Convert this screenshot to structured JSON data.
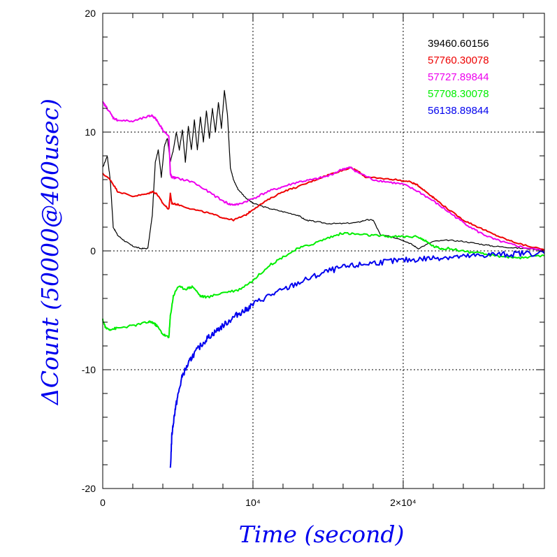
{
  "chart_data": {
    "type": "line",
    "xlabel": "Time (second)",
    "ylabel": "ΔCount (50000@400usec)",
    "xlim": [
      0,
      29400
    ],
    "ylim": [
      -20,
      20
    ],
    "grid": true,
    "legend_placement": "top-right",
    "label_color": "#0000ee",
    "x_ticks": [
      {
        "value": 0,
        "label": "0"
      },
      {
        "value": 10000,
        "label": "10⁴"
      },
      {
        "value": 20000,
        "label": "2×10⁴"
      }
    ],
    "y_ticks": [
      {
        "value": 20,
        "label": "20"
      },
      {
        "value": 10,
        "label": "10"
      },
      {
        "value": 0,
        "label": "0"
      },
      {
        "value": -10,
        "label": "-10"
      },
      {
        "value": -20,
        "label": "-20"
      }
    ],
    "series": [
      {
        "name": "39460.60156",
        "color": "#000000",
        "x": [
          0,
          300,
          500,
          700,
          1000,
          1500,
          2000,
          2500,
          3000,
          3300,
          3500,
          3700,
          3900,
          4100,
          4300,
          4500,
          4700,
          4900,
          5100,
          5300,
          5500,
          5700,
          5900,
          6100,
          6300,
          6500,
          6700,
          6900,
          7100,
          7300,
          7500,
          7700,
          7900,
          8100,
          8300,
          8500,
          8700,
          9000,
          9500,
          10000,
          11000,
          12000,
          13000,
          13500,
          14000,
          15000,
          16000,
          17000,
          17500,
          18000,
          18500,
          19000,
          20000,
          20500,
          21000,
          22000,
          23000,
          24000,
          25000,
          26000,
          27000,
          28000,
          29400
        ],
        "y": [
          7,
          8,
          6,
          2,
          1.3,
          0.8,
          0.4,
          0.2,
          0.2,
          3,
          7.5,
          8.5,
          6.2,
          8.8,
          9.5,
          7.5,
          8.5,
          10,
          8.5,
          10.2,
          7.5,
          10.5,
          8.5,
          11,
          8.5,
          11.3,
          9.2,
          11.8,
          9.5,
          12,
          10,
          12.5,
          10.3,
          13.5,
          11.5,
          7,
          6,
          5.2,
          4.5,
          4,
          3.6,
          3.3,
          3.0,
          2.6,
          2.5,
          2.3,
          2.3,
          2.4,
          2.6,
          2.6,
          1.3,
          1.3,
          0.9,
          0.6,
          0.2,
          0.8,
          0.9,
          0.8,
          0.6,
          0.4,
          0.3,
          0.2,
          0.1
        ]
      },
      {
        "name": "57760.30078",
        "color": "#ee0000",
        "x": [
          0,
          500,
          1000,
          2000,
          3000,
          3300,
          3600,
          4000,
          4400,
          4500,
          4600,
          5000,
          6000,
          7000,
          8000,
          8700,
          9500,
          10000,
          11000,
          12000,
          13000,
          14000,
          15000,
          16000,
          16500,
          17000,
          17500,
          18500,
          19500,
          20500,
          21000,
          21500,
          22000,
          23000,
          24000,
          25000,
          26000,
          27000,
          28000,
          29400
        ],
        "y": [
          6.5,
          6.0,
          5.0,
          4.6,
          4.8,
          5.0,
          4.8,
          4.0,
          3.5,
          4.8,
          4.0,
          3.9,
          3.5,
          3.2,
          2.8,
          2.6,
          3.0,
          3.5,
          4.3,
          5.0,
          5.4,
          5.9,
          6.4,
          6.8,
          7.0,
          6.7,
          6.2,
          6.1,
          6.0,
          5.8,
          5.5,
          5.0,
          4.5,
          3.5,
          2.6,
          2.0,
          1.4,
          0.9,
          0.5,
          0.1
        ]
      },
      {
        "name": "57727.89844",
        "color": "#ee00ee",
        "x": [
          0,
          300,
          700,
          1000,
          2000,
          3000,
          3300,
          3600,
          4000,
          4400,
          4500,
          4600,
          5000,
          6000,
          7000,
          8000,
          8500,
          9000,
          10000,
          11000,
          12000,
          13000,
          14000,
          15000,
          16000,
          16500,
          17000,
          18000,
          19000,
          20000,
          21000,
          22000,
          23000,
          24000,
          25000,
          26000,
          27000,
          28000,
          29400
        ],
        "y": [
          12.5,
          12,
          11.2,
          11.0,
          10.9,
          11.3,
          11.4,
          11.0,
          10.2,
          9.6,
          6.5,
          6.2,
          6.1,
          5.8,
          5.0,
          4.2,
          3.9,
          3.9,
          4.4,
          5.0,
          5.4,
          5.8,
          6.0,
          6.3,
          6.9,
          7.0,
          6.6,
          6.0,
          5.8,
          5.6,
          5.0,
          4.2,
          3.3,
          2.4,
          1.6,
          1.0,
          0.6,
          0.3,
          0.0
        ]
      },
      {
        "name": "57708.30078",
        "color": "#00ee00",
        "x": [
          0,
          200,
          500,
          1000,
          2000,
          3000,
          3300,
          3600,
          4000,
          4400,
          4500,
          4700,
          5000,
          5500,
          6000,
          6500,
          7000,
          8000,
          9000,
          10000,
          11000,
          12000,
          13000,
          14000,
          15000,
          16000,
          17000,
          18000,
          19000,
          20000,
          21000,
          21500,
          22000,
          22500,
          23000,
          24000,
          25000,
          26000,
          27000,
          28000,
          29400
        ],
        "y": [
          -5.8,
          -6.5,
          -6.6,
          -6.5,
          -6.3,
          -6.0,
          -6.0,
          -6.3,
          -7.0,
          -7.3,
          -5.5,
          -3.8,
          -3.0,
          -3.2,
          -3.0,
          -3.8,
          -3.9,
          -3.5,
          -3.3,
          -2.5,
          -1.3,
          -0.5,
          0.2,
          0.6,
          1.1,
          1.5,
          1.4,
          1.3,
          1.2,
          1.2,
          1.2,
          0.8,
          0.4,
          0.2,
          0.2,
          0.0,
          -0.2,
          -0.4,
          -0.5,
          -0.6,
          -0.4
        ]
      },
      {
        "name": "56138.89844",
        "color": "#0000ee",
        "x": [
          4500,
          4600,
          4800,
          5000,
          5300,
          5700,
          6000,
          6500,
          7000,
          7500,
          8000,
          8500,
          9000,
          9500,
          10000,
          11000,
          12000,
          13000,
          14000,
          15000,
          16000,
          17000,
          18000,
          19000,
          20000,
          21000,
          22000,
          23000,
          24000,
          25000,
          26000,
          27000,
          28000,
          29400
        ],
        "y": [
          -18.5,
          -15.5,
          -13.5,
          -12.2,
          -10.5,
          -9.5,
          -8.8,
          -8.0,
          -7.3,
          -6.8,
          -6.3,
          -5.8,
          -5.3,
          -5.0,
          -4.5,
          -3.8,
          -3.3,
          -2.7,
          -2.2,
          -1.7,
          -1.4,
          -1.2,
          -1.0,
          -0.9,
          -0.8,
          -0.7,
          -0.6,
          -0.5,
          -0.5,
          -0.4,
          -0.3,
          -0.3,
          -0.2,
          -0.2
        ]
      }
    ]
  }
}
